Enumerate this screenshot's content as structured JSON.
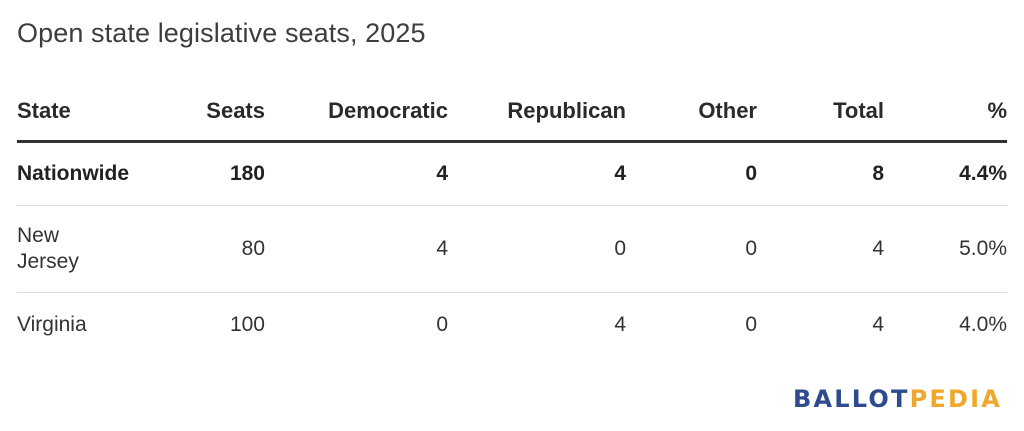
{
  "chart_data": {
    "type": "table",
    "title": "Open state legislative seats, 2025",
    "columns": [
      "State",
      "Seats",
      "Democratic",
      "Republican",
      "Other",
      "Total",
      "%"
    ],
    "rows": [
      {
        "state": "Nationwide",
        "seats": "180",
        "democratic": "4",
        "republican": "4",
        "other": "0",
        "total": "8",
        "pct": "4.4%",
        "bold": true
      },
      {
        "state": "New Jersey",
        "seats": "80",
        "democratic": "4",
        "republican": "0",
        "other": "0",
        "total": "4",
        "pct": "5.0%",
        "bold": false
      },
      {
        "state": "Virginia",
        "seats": "100",
        "democratic": "0",
        "republican": "4",
        "other": "0",
        "total": "4",
        "pct": "4.0%",
        "bold": false
      }
    ]
  },
  "logo": {
    "part1": "BALLOT",
    "part2": "PEDIA",
    "color1": "#2e4b8f",
    "color2": "#f0a72b"
  }
}
